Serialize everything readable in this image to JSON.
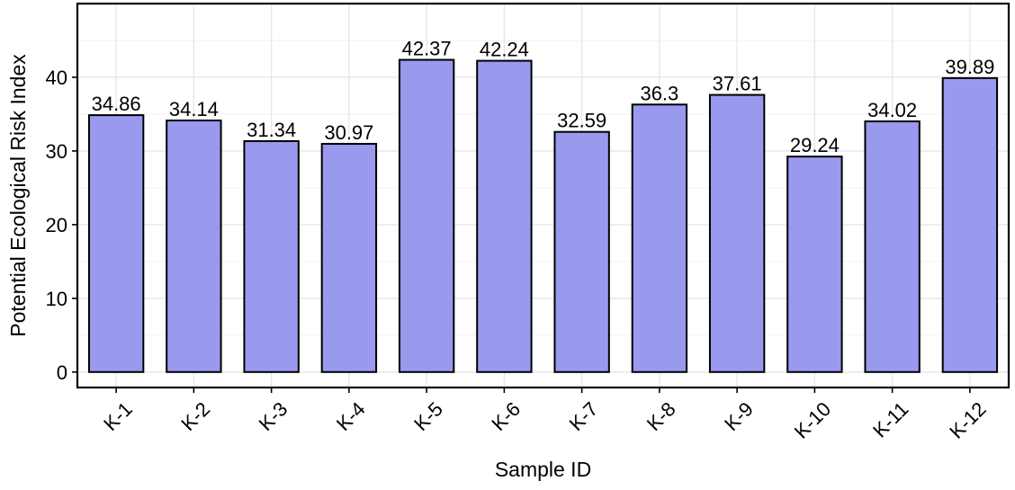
{
  "chart_data": {
    "type": "bar",
    "categories": [
      "K-1",
      "K-2",
      "K-3",
      "K-4",
      "K-5",
      "K-6",
      "K-7",
      "K-8",
      "K-9",
      "K-10",
      "K-11",
      "K-12"
    ],
    "values": [
      34.86,
      34.14,
      31.34,
      30.97,
      42.37,
      42.24,
      32.59,
      36.3,
      37.61,
      29.24,
      34.02,
      39.89
    ],
    "data_labels": [
      "34.86",
      "34.14",
      "31.34",
      "30.97",
      "42.37",
      "42.24",
      "32.59",
      "36.3",
      "37.61",
      "29.24",
      "34.02",
      "39.89"
    ],
    "xlabel": "Sample ID",
    "ylabel": "Potential Ecological Risk Index",
    "ylim": [
      -2.1,
      50
    ],
    "yticks": [
      0,
      10,
      20,
      30,
      40
    ],
    "grid": true,
    "legend": "none",
    "bar_color": "#9999ee",
    "bar_border_color": "#000000"
  }
}
